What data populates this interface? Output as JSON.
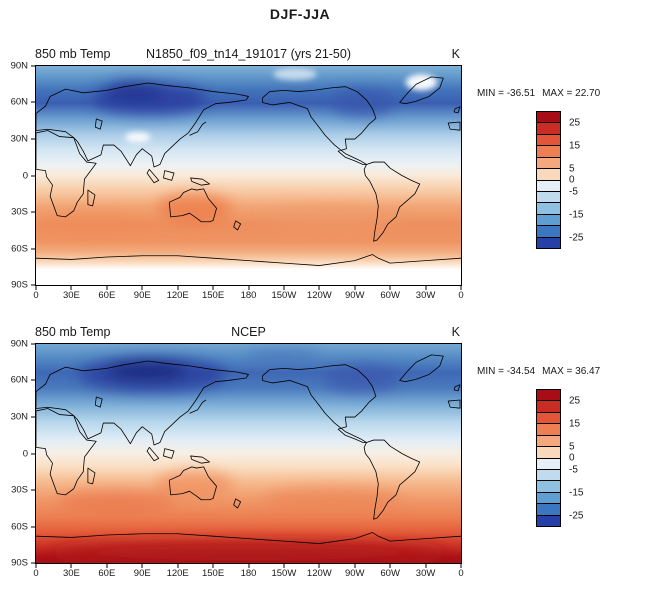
{
  "title": "DJF-JJA",
  "axes": {
    "lat_labels": [
      "90N",
      "60N",
      "30N",
      "0",
      "30S",
      "60S",
      "90S"
    ],
    "lon_labels": [
      "0",
      "30E",
      "60E",
      "90E",
      "120E",
      "150E",
      "180",
      "150W",
      "120W",
      "90W",
      "60W",
      "30W",
      "0"
    ]
  },
  "colorbar": {
    "colors": [
      "#a80c16",
      "#c92c22",
      "#e25538",
      "#ee7f53",
      "#f5a87e",
      "#fad8bc",
      "#e6eff8",
      "#c2daee",
      "#8fc0e1",
      "#5e9ed2",
      "#3b77c0",
      "#2640a8"
    ],
    "tick_labels": [
      "25",
      "15",
      "5",
      "0",
      "-5",
      "-15",
      "-25"
    ],
    "tick_positions": [
      1,
      3,
      5,
      6,
      7,
      9,
      11
    ]
  },
  "panels": [
    {
      "left_title": "850 mb Temp",
      "center_title": "N1850_f09_tn14_191017 (yrs 21-50)",
      "units": "K",
      "min_label": "MIN = -36.51",
      "max_label": "MAX =  22.70"
    },
    {
      "left_title": "850 mb Temp",
      "center_title": "NCEP",
      "units": "K",
      "min_label": "MIN = -34.54",
      "max_label": "MAX =  36.47"
    }
  ],
  "chart_data": [
    {
      "type": "heatmap",
      "subtype": "filled-contour-world-map",
      "title": "850 mb Temp N1850_f09_tn14_191017 (yrs 21-50)",
      "season_difference": "DJF-JJA",
      "units": "K",
      "stat_min": -36.51,
      "stat_max": 22.7,
      "contour_levels": [
        -25,
        -20,
        -15,
        -10,
        -5,
        0,
        5,
        10,
        15,
        20,
        25
      ],
      "x_ticks": [
        "0",
        "30E",
        "60E",
        "90E",
        "120E",
        "150E",
        "180",
        "150W",
        "120W",
        "90W",
        "60W",
        "30W",
        "0"
      ],
      "y_ticks": [
        "90N",
        "60N",
        "30N",
        "0",
        "30S",
        "60S",
        "90S"
      ],
      "legend_position": "right",
      "zonal_mean_estimate": {
        "lat": [
          90,
          75,
          60,
          45,
          30,
          15,
          0,
          -15,
          -30,
          -45,
          -60,
          -75,
          -90
        ],
        "value": [
          -17,
          -24,
          -28,
          -13,
          -5,
          -1,
          2,
          7,
          11,
          12,
          7,
          1,
          0
        ]
      },
      "notable_features": [
        "deep minimum below -25 K over Siberia and northeastern Canada",
        "positive band 5-15 K across southern subtropics and Australia",
        "white (near-zero/masked) region poleward of about 65S"
      ]
    },
    {
      "type": "heatmap",
      "subtype": "filled-contour-world-map",
      "title": "850 mb Temp NCEP",
      "season_difference": "DJF-JJA",
      "units": "K",
      "stat_min": -34.54,
      "stat_max": 36.47,
      "contour_levels": [
        -25,
        -20,
        -15,
        -10,
        -5,
        0,
        5,
        10,
        15,
        20,
        25
      ],
      "x_ticks": [
        "0",
        "30E",
        "60E",
        "90E",
        "120E",
        "150E",
        "180",
        "150W",
        "120W",
        "90W",
        "60W",
        "30W",
        "0"
      ],
      "y_ticks": [
        "90N",
        "60N",
        "30N",
        "0",
        "30S",
        "60S",
        "90S"
      ],
      "legend_position": "right",
      "zonal_mean_estimate": {
        "lat": [
          90,
          75,
          60,
          45,
          30,
          15,
          0,
          -15,
          -30,
          -45,
          -60,
          -75,
          -90
        ],
        "value": [
          -14,
          -22,
          -26,
          -12,
          -4,
          -1,
          2,
          7,
          11,
          13,
          16,
          26,
          32
        ]
      },
      "notable_features": [
        "deep minimum below -25 K over central Siberia",
        "maximum above 25 K over Antarctica"
      ]
    }
  ]
}
